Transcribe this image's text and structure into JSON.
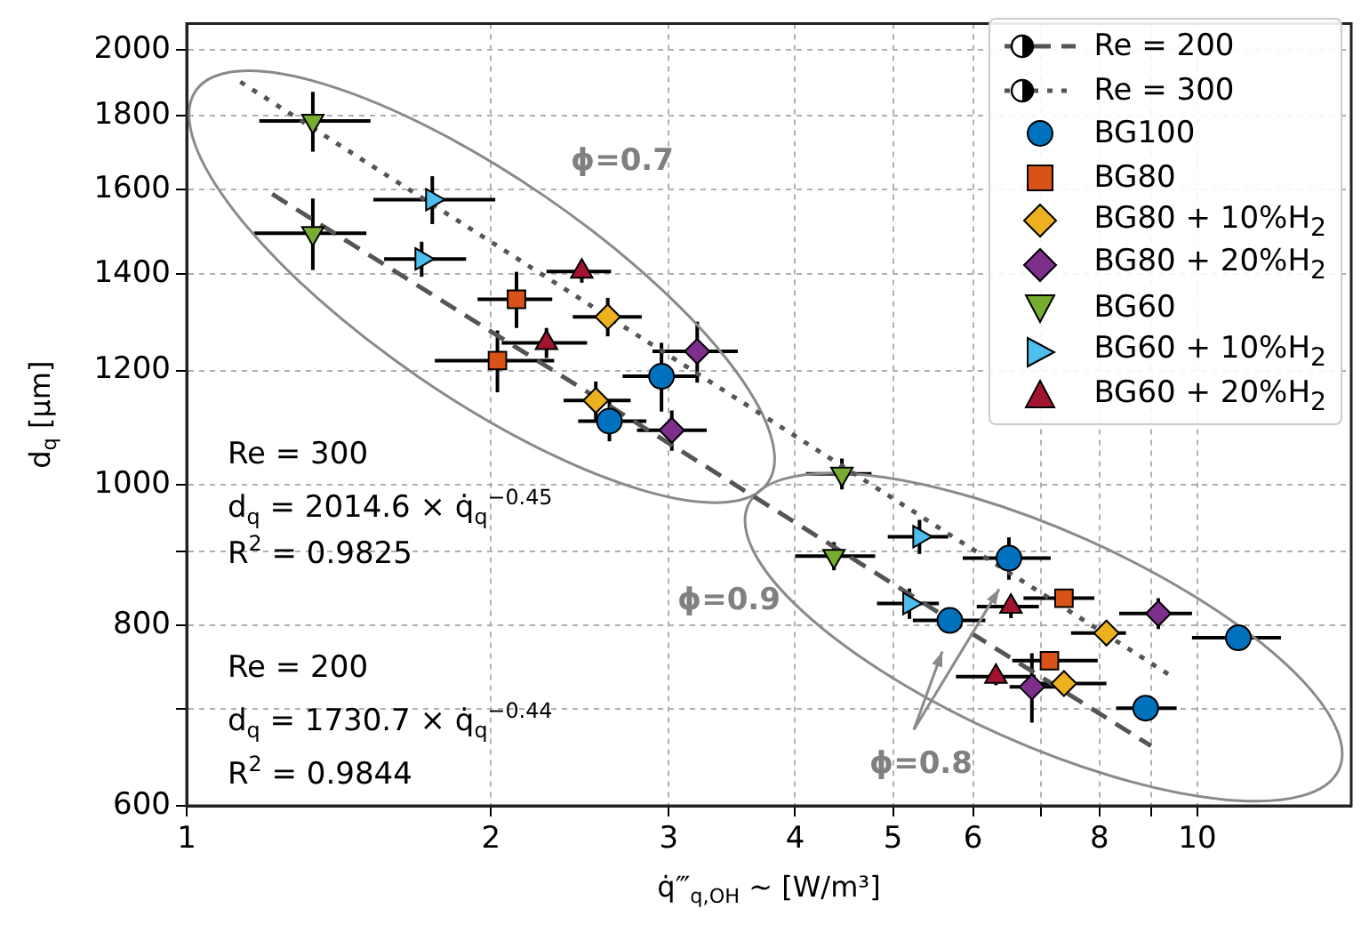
{
  "chart_data": {
    "type": "scatter",
    "xlabel": "q̇‴$_{q,OH}$ ∼ [W/m³]",
    "ylabel": "d$_{q}$ [μm]",
    "log": "xy",
    "grid": true,
    "legend": "top right",
    "xlim": [
      1,
      14.2
    ],
    "xticks": [
      1,
      2,
      3,
      4,
      5,
      6,
      {
        "value": 7,
        "label": null
      },
      8,
      {
        "value": 9,
        "label": null
      },
      10
    ],
    "ylim": [
      600,
      2085
    ],
    "yticks": [
      600,
      {
        "value": 700,
        "label": null
      },
      800,
      {
        "value": 900,
        "label": null
      },
      1000,
      1200,
      1400,
      1600,
      1800,
      2000
    ],
    "annotations": [
      "ϕ=0.7",
      "ϕ=0.9",
      "ϕ=0.8",
      "Re = 300",
      "d$_{q}$ = 2014.6 × q̇$_{q}$$^{−0.45}$",
      "R$^{2}$ = 0.9825",
      "Re = 200",
      "d$_{q}$ = 1730.7 × q̇$_{q}$$^{−0.44}$",
      "R$^{2}$ = 0.9844"
    ],
    "series": [
      {
        "name": "Re = 200",
        "type": "line",
        "line_style": "dashed",
        "marker": "none",
        "color": "#555555",
        "x": [
          1.215,
          9.0
        ],
        "values": [
          1589,
          660
        ]
      },
      {
        "name": "Re = 300",
        "type": "line",
        "line_style": "dotted",
        "marker": "none",
        "color": "#555555",
        "x": [
          1.13,
          9.5
        ],
        "values": [
          1900,
          735
        ]
      },
      {
        "name": "BG100",
        "marker": "circle",
        "color": "#0072bd",
        "x": [
          2.62,
          2.95,
          5.69,
          6.51,
          8.89,
          10.98
        ],
        "values": [
          1107,
          1189,
          806,
          890,
          701,
          784
        ],
        "errors": [
          35,
          65,
          null,
          30,
          null,
          null
        ],
        "xerrors": [
          [
            2.44,
            2.85
          ],
          [
            2.7,
            3.21
          ],
          [
            5.23,
            6.17
          ],
          [
            5.86,
            7.16
          ],
          [
            8.31,
            9.54
          ],
          [
            9.88,
            12.1
          ]
        ]
      },
      {
        "name": "BG80",
        "marker": "square",
        "color": "#d95319",
        "x": [
          2.03,
          2.12,
          7.14,
          7.38
        ],
        "values": [
          1219,
          1344,
          756,
          835
        ],
        "errors": [
          60,
          60,
          10,
          10
        ],
        "xerrors": [
          [
            1.76,
            2.31
          ],
          [
            1.94,
            2.3
          ],
          [
            6.56,
            7.97
          ],
          [
            6.73,
            7.91
          ]
        ]
      },
      {
        "name": "BG80 + 10%H$_{2}$",
        "marker": "diamond",
        "color": "#edb120",
        "x": [
          2.54,
          2.61,
          7.38,
          8.13
        ],
        "values": [
          1144,
          1307,
          729,
          790
        ],
        "errors": [
          35,
          40,
          10,
          15
        ],
        "xerrors": [
          [
            2.36,
            2.75
          ],
          [
            2.41,
            2.82
          ],
          [
            6.92,
            8.13
          ],
          [
            7.5,
            8.5
          ]
        ]
      },
      {
        "name": "BG80 + 20%H$_{2}$",
        "marker": "diamond",
        "color": "#7e2f8e",
        "x": [
          3.02,
          3.2,
          6.86,
          9.15
        ],
        "values": [
          1091,
          1237,
          725,
          815
        ],
        "errors": [
          35,
          60,
          40,
          20
        ],
        "xerrors": [
          [
            2.79,
            3.27
          ],
          [
            2.89,
            3.51
          ],
          [
            6.52,
            7.35
          ],
          [
            8.37,
            9.88
          ]
        ]
      },
      {
        "name": "BG60",
        "marker": "triangle-down",
        "color": "#77ac30",
        "x": [
          1.333,
          1.333,
          4.37,
          4.45
        ],
        "values": [
          1493,
          1785,
          893,
          1018
        ],
        "errors": [
          85,
          85,
          20,
          25
        ],
        "xerrors": [
          [
            1.166,
            1.506
          ],
          [
            1.18,
            1.52
          ],
          [
            4.0,
            4.8
          ],
          [
            4.1,
            4.76
          ]
        ]
      },
      {
        "name": "BG60 + 10%H$_{2}$",
        "marker": "triangle-right",
        "color": "#4dbeee",
        "x": [
          1.708,
          1.75,
          5.19,
          5.31
        ],
        "values": [
          1433,
          1575,
          828,
          921
        ],
        "errors": [
          40,
          60,
          20,
          25
        ],
        "xerrors": [
          [
            1.568,
            1.89
          ],
          [
            1.53,
            2.02
          ],
          [
            4.82,
            5.55
          ],
          [
            4.94,
            5.67
          ]
        ]
      },
      {
        "name": "BG60 + 20%H$_{2}$",
        "marker": "triangle",
        "color": "#a2142f",
        "x": [
          2.27,
          2.46,
          6.32,
          6.54
        ],
        "values": [
          1254,
          1405,
          737,
          824
        ],
        "errors": [
          30,
          25,
          10,
          15
        ],
        "xerrors": [
          [
            2.05,
            2.49
          ],
          [
            2.27,
            2.63
          ],
          [
            5.77,
            6.92
          ],
          [
            6.05,
            6.97
          ]
        ]
      }
    ]
  }
}
